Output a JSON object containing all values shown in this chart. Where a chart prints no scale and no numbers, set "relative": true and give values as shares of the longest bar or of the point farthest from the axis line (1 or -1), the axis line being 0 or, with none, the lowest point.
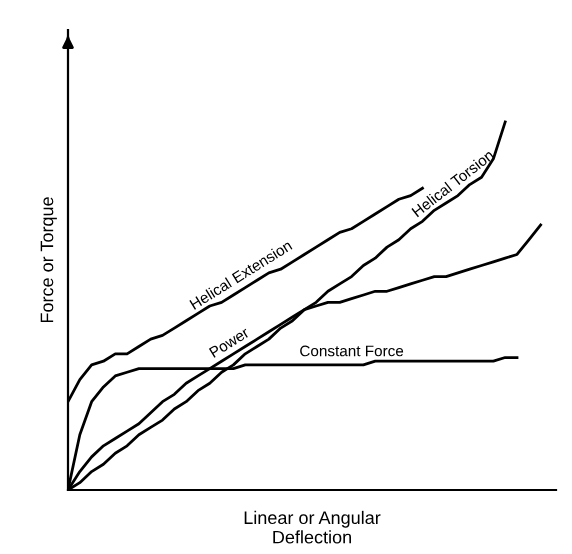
{
  "chart_data": {
    "type": "line",
    "relative": true,
    "xlabel": "Linear or Angular\nDeflection",
    "ylabel": "Force or Torque",
    "grid": false,
    "legend": false,
    "marker": "none",
    "line_style": "solid",
    "categories": [
      null,
      null,
      null,
      null,
      null,
      null,
      null,
      null,
      null,
      null,
      null,
      null,
      null,
      null,
      null,
      null,
      null,
      null,
      null,
      null,
      null,
      null,
      null,
      null,
      null,
      null,
      null,
      null,
      null,
      null,
      null,
      null,
      null,
      null,
      null,
      null,
      null,
      null,
      null,
      null,
      null
    ],
    "series": [
      {
        "name": "Helical Extension",
        "color": "#000000",
        "values": [
          0.24,
          0.3,
          0.34,
          0.35,
          0.37,
          0.37,
          0.39,
          0.41,
          0.42,
          0.44,
          0.46,
          0.48,
          0.5,
          0.51,
          0.53,
          0.55,
          0.57,
          0.59,
          0.6,
          0.62,
          0.64,
          0.66,
          0.68,
          0.7,
          0.71,
          0.73,
          0.75,
          0.77,
          0.79,
          0.8,
          0.82,
          null,
          null,
          null,
          null,
          null,
          null,
          null,
          null,
          null,
          null
        ]
      },
      {
        "name": "Power",
        "color": "#000000",
        "values": [
          0,
          0.05,
          0.09,
          0.12,
          0.14,
          0.16,
          0.18,
          0.21,
          0.24,
          0.26,
          0.29,
          0.31,
          0.33,
          0.35,
          0.37,
          0.39,
          0.41,
          0.43,
          0.45,
          0.47,
          0.49,
          0.5,
          0.51,
          0.51,
          0.52,
          0.53,
          0.54,
          0.54,
          0.55,
          0.56,
          0.57,
          0.58,
          0.58,
          0.59,
          0.6,
          0.61,
          0.62,
          0.63,
          0.64,
          0.68,
          0.72
        ]
      },
      {
        "name": "Constant Force",
        "color": "#000000",
        "values": [
          0,
          0.15,
          0.24,
          0.28,
          0.31,
          0.32,
          0.33,
          0.33,
          0.33,
          0.33,
          0.33,
          0.33,
          0.33,
          0.33,
          0.33,
          0.34,
          0.34,
          0.34,
          0.34,
          0.34,
          0.34,
          0.34,
          0.34,
          0.34,
          0.34,
          0.34,
          0.35,
          0.35,
          0.35,
          0.35,
          0.35,
          0.35,
          0.35,
          0.35,
          0.35,
          0.35,
          0.35,
          0.36,
          0.36,
          null,
          null
        ]
      },
      {
        "name": "Helical Torsion",
        "color": "#000000",
        "values": [
          0,
          0.02,
          0.05,
          0.07,
          0.1,
          0.12,
          0.15,
          0.17,
          0.19,
          0.22,
          0.24,
          0.27,
          0.29,
          0.32,
          0.34,
          0.37,
          0.39,
          0.41,
          0.44,
          0.46,
          0.49,
          0.51,
          0.54,
          0.56,
          0.58,
          0.61,
          0.63,
          0.66,
          0.68,
          0.71,
          0.73,
          0.76,
          0.78,
          0.8,
          0.83,
          0.85,
          0.9,
          1.0,
          null,
          null,
          null
        ]
      }
    ]
  }
}
